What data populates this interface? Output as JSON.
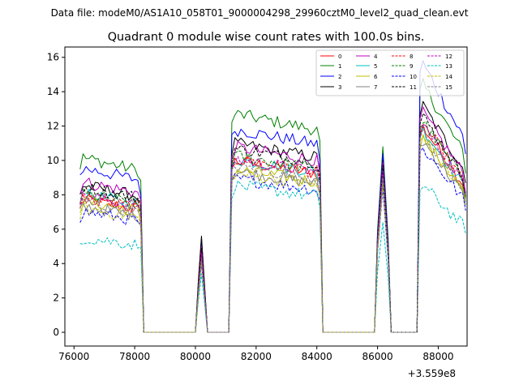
{
  "header": {
    "data_file": "Data file: modeM0/AS1A10_058T01_9000004298_29960cztM0_level2_quad_clean.evt"
  },
  "chart_data": {
    "type": "line",
    "title": "Quadrant 0 module wise count rates with 100.0s bins.",
    "xlabel": "",
    "ylabel": "",
    "x_offset_label": "+3.559e8",
    "xlim": [
      75700,
      88950
    ],
    "ylim": [
      -0.8,
      16.6
    ],
    "xticks": [
      {
        "value": 76000,
        "label": "76000"
      },
      {
        "value": 78000,
        "label": "78000"
      },
      {
        "value": 80000,
        "label": "80000"
      },
      {
        "value": 82000,
        "label": "82000"
      },
      {
        "value": 84000,
        "label": "84000"
      },
      {
        "value": 86000,
        "label": "86000"
      },
      {
        "value": 88000,
        "label": "88000"
      }
    ],
    "yticks": [
      {
        "value": 0,
        "label": "0"
      },
      {
        "value": 2,
        "label": "2"
      },
      {
        "value": 4,
        "label": "4"
      },
      {
        "value": 6,
        "label": "6"
      },
      {
        "value": 8,
        "label": "8"
      },
      {
        "value": 10,
        "label": "10"
      },
      {
        "value": 12,
        "label": "12"
      },
      {
        "value": 14,
        "label": "14"
      },
      {
        "value": 16,
        "label": "16"
      }
    ],
    "legend_position": "top-right",
    "legend_columns": 4,
    "segments": [
      {
        "start": 76200,
        "end": 78200
      },
      {
        "start": 81200,
        "end": 84100
      },
      {
        "start": 87400,
        "end": 88850
      }
    ],
    "spikes": [
      {
        "start": 80100,
        "end": 80300
      },
      {
        "start": 86000,
        "end": 86350
      }
    ],
    "bin_width": 100,
    "series": [
      {
        "name": "0",
        "color": "#ff0000",
        "dash": "solid",
        "levels": [
          7.6,
          9.8,
          11.6
        ],
        "spike": [
          4.6,
          9.5
        ]
      },
      {
        "name": "1",
        "color": "#008000",
        "dash": "solid",
        "levels": [
          10.0,
          12.5,
          14.0
        ],
        "spike": [
          5.5,
          10.8
        ]
      },
      {
        "name": "2",
        "color": "#0000ff",
        "dash": "solid",
        "levels": [
          9.4,
          11.6,
          15.2
        ],
        "spike": [
          5.2,
          10.4
        ]
      },
      {
        "name": "3",
        "color": "#000000",
        "dash": "solid",
        "levels": [
          8.4,
          10.8,
          12.8
        ],
        "spike": [
          5.6,
          10.0
        ]
      },
      {
        "name": "4",
        "color": "#bf00bf",
        "dash": "solid",
        "levels": [
          8.6,
          10.6,
          12.4
        ],
        "spike": [
          5.0,
          9.9
        ]
      },
      {
        "name": "5",
        "color": "#00bfbf",
        "dash": "solid",
        "levels": [
          7.9,
          9.9,
          11.5
        ],
        "spike": [
          4.5,
          9.4
        ]
      },
      {
        "name": "6",
        "color": "#bfbf00",
        "dash": "solid",
        "levels": [
          7.5,
          9.3,
          11.0
        ],
        "spike": [
          4.3,
          9.0
        ]
      },
      {
        "name": "7",
        "color": "#808080",
        "dash": "solid",
        "levels": [
          7.2,
          9.2,
          10.8
        ],
        "spike": [
          4.2,
          8.8
        ]
      },
      {
        "name": "8",
        "color": "#ff0000",
        "dash": "dashed",
        "levels": [
          7.7,
          9.9,
          11.8
        ],
        "spike": [
          4.4,
          9.2
        ]
      },
      {
        "name": "9",
        "color": "#008000",
        "dash": "dashed",
        "levels": [
          7.9,
          10.1,
          11.9
        ],
        "spike": [
          4.6,
          9.3
        ]
      },
      {
        "name": "10",
        "color": "#0000ff",
        "dash": "dashed",
        "levels": [
          6.9,
          8.8,
          10.4
        ],
        "spike": [
          4.0,
          8.4
        ]
      },
      {
        "name": "11",
        "color": "#000000",
        "dash": "dashed",
        "levels": [
          8.3,
          10.5,
          12.2
        ],
        "spike": [
          4.9,
          9.7
        ]
      },
      {
        "name": "12",
        "color": "#bf00bf",
        "dash": "dashed",
        "levels": [
          7.8,
          9.9,
          11.7
        ],
        "spike": [
          4.6,
          9.3
        ]
      },
      {
        "name": "13",
        "color": "#00bfbf",
        "dash": "dashed",
        "levels": [
          5.4,
          8.4,
          8.3
        ],
        "spike": [
          3.4,
          6.4
        ]
      },
      {
        "name": "14",
        "color": "#bfbf00",
        "dash": "dashed",
        "levels": [
          7.1,
          9.1,
          11.0
        ],
        "spike": [
          4.1,
          8.6
        ]
      },
      {
        "name": "15",
        "color": "#808080",
        "dash": "dashed",
        "levels": [
          7.4,
          9.5,
          11.2
        ],
        "spike": [
          4.3,
          9.0
        ]
      }
    ]
  }
}
